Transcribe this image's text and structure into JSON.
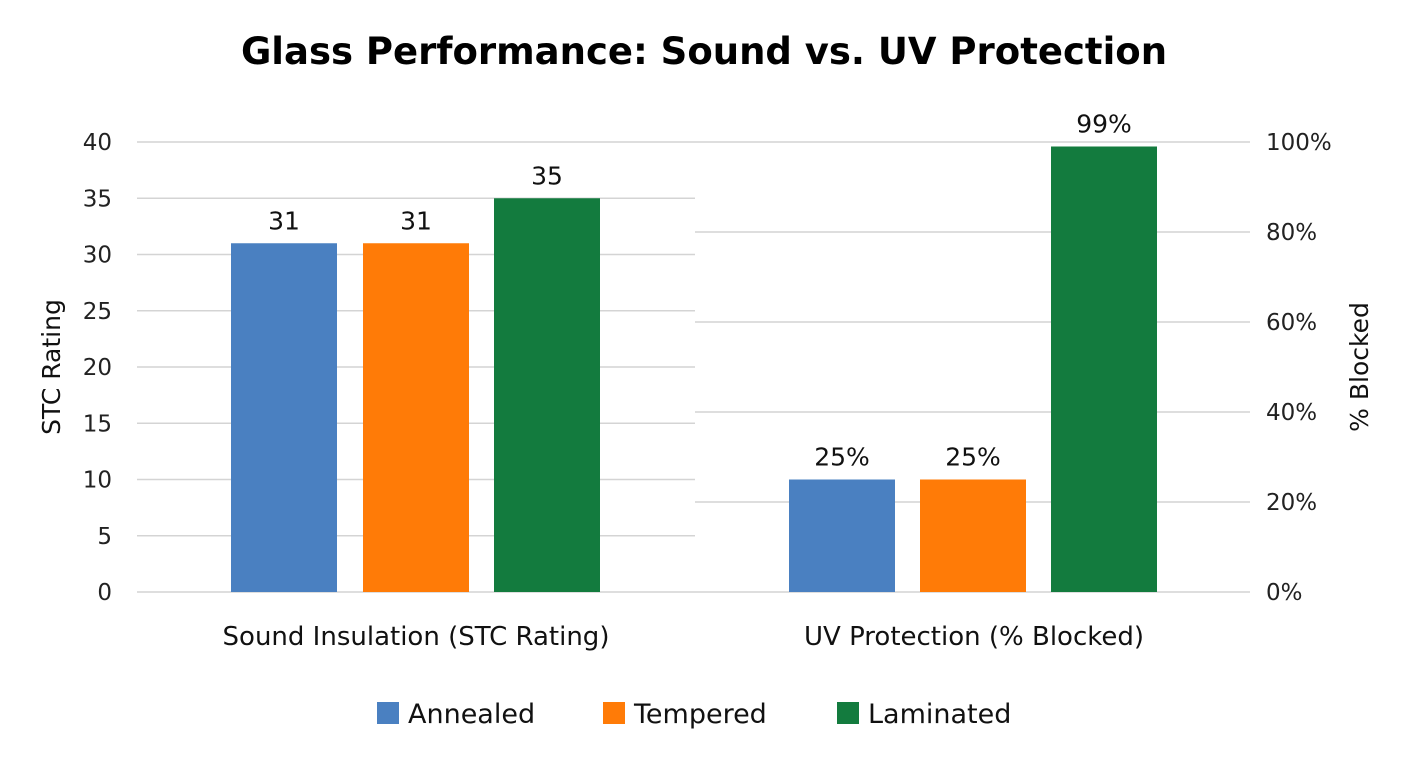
{
  "chart_data": [
    {
      "type": "bar",
      "title": "Glass Performance: Sound vs. UV Protection",
      "category": "Sound Insulation (STC Rating)",
      "ylabel": "STC Rating",
      "ylim": [
        0,
        40
      ],
      "yticks": [
        "0",
        "5",
        "10",
        "15",
        "20",
        "25",
        "30",
        "35",
        "40"
      ],
      "axis_side": "left",
      "grid": true,
      "series": [
        {
          "name": "Annealed",
          "value": 31,
          "label": "31"
        },
        {
          "name": "Tempered",
          "value": 31,
          "label": "31"
        },
        {
          "name": "Laminated",
          "value": 35,
          "label": "35"
        }
      ]
    },
    {
      "type": "bar",
      "category": "UV Protection (% Blocked)",
      "ylabel": "% Blocked",
      "ylim": [
        0,
        100
      ],
      "yticks": [
        "0%",
        "20%",
        "40%",
        "60%",
        "80%",
        "100%"
      ],
      "axis_side": "right",
      "grid": true,
      "series": [
        {
          "name": "Annealed",
          "value": 25,
          "label": "25%"
        },
        {
          "name": "Tempered",
          "value": 25,
          "label": "25%"
        },
        {
          "name": "Laminated",
          "value": 99,
          "label": "99%"
        }
      ]
    }
  ],
  "legend": {
    "placement": "bottom",
    "items": [
      {
        "name": "Annealed",
        "color": "#4a80c1"
      },
      {
        "name": "Tempered",
        "color": "#ff7b07"
      },
      {
        "name": "Laminated",
        "color": "#137b3e"
      }
    ]
  }
}
